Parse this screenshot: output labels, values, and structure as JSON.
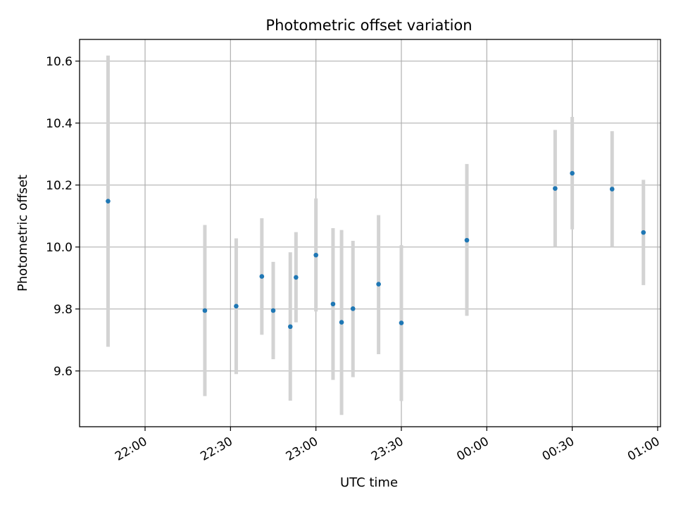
{
  "chart_data": {
    "type": "scatter",
    "title": "Photometric offset variation",
    "xlabel": "UTC time",
    "ylabel": "Photometric offset",
    "x_ticks": [
      "22:00",
      "22:30",
      "23:00",
      "23:30",
      "00:00",
      "00:30",
      "01:00"
    ],
    "y_ticks": [
      "9.6",
      "9.8",
      "10.0",
      "10.2",
      "10.4",
      "10.6"
    ],
    "xlim": [
      "21:37",
      "01:01"
    ],
    "ylim": [
      9.42,
      10.67
    ],
    "grid": true,
    "marker_color": "#1f77b4",
    "errorbar_color": "#d3d3d3",
    "points": [
      {
        "t": "21:47",
        "y": 10.148,
        "lo": 9.678,
        "hi": 10.618
      },
      {
        "t": "22:21",
        "y": 9.795,
        "lo": 9.519,
        "hi": 10.071
      },
      {
        "t": "22:32",
        "y": 9.809,
        "lo": 9.59,
        "hi": 10.028
      },
      {
        "t": "22:41",
        "y": 9.905,
        "lo": 9.717,
        "hi": 10.093
      },
      {
        "t": "22:45",
        "y": 9.795,
        "lo": 9.638,
        "hi": 9.952
      },
      {
        "t": "22:51",
        "y": 9.743,
        "lo": 9.504,
        "hi": 9.983
      },
      {
        "t": "22:53",
        "y": 9.902,
        "lo": 9.757,
        "hi": 10.048
      },
      {
        "t": "23:00",
        "y": 9.974,
        "lo": 9.792,
        "hi": 10.157
      },
      {
        "t": "23:06",
        "y": 9.816,
        "lo": 9.571,
        "hi": 10.061
      },
      {
        "t": "23:09",
        "y": 9.757,
        "lo": 9.458,
        "hi": 10.055
      },
      {
        "t": "23:13",
        "y": 9.801,
        "lo": 9.58,
        "hi": 10.02
      },
      {
        "t": "23:22",
        "y": 9.88,
        "lo": 9.654,
        "hi": 10.103
      },
      {
        "t": "23:30",
        "y": 9.755,
        "lo": 9.503,
        "hi": 10.006
      },
      {
        "t": "23:53",
        "y": 10.022,
        "lo": 9.778,
        "hi": 10.268
      },
      {
        "t": "00:24",
        "y": 10.189,
        "lo": 10.0,
        "hi": 10.378
      },
      {
        "t": "00:30",
        "y": 10.238,
        "lo": 10.057,
        "hi": 10.42
      },
      {
        "t": "00:44",
        "y": 10.187,
        "lo": 10.0,
        "hi": 10.374
      },
      {
        "t": "00:55",
        "y": 10.047,
        "lo": 9.877,
        "hi": 10.217
      }
    ]
  }
}
